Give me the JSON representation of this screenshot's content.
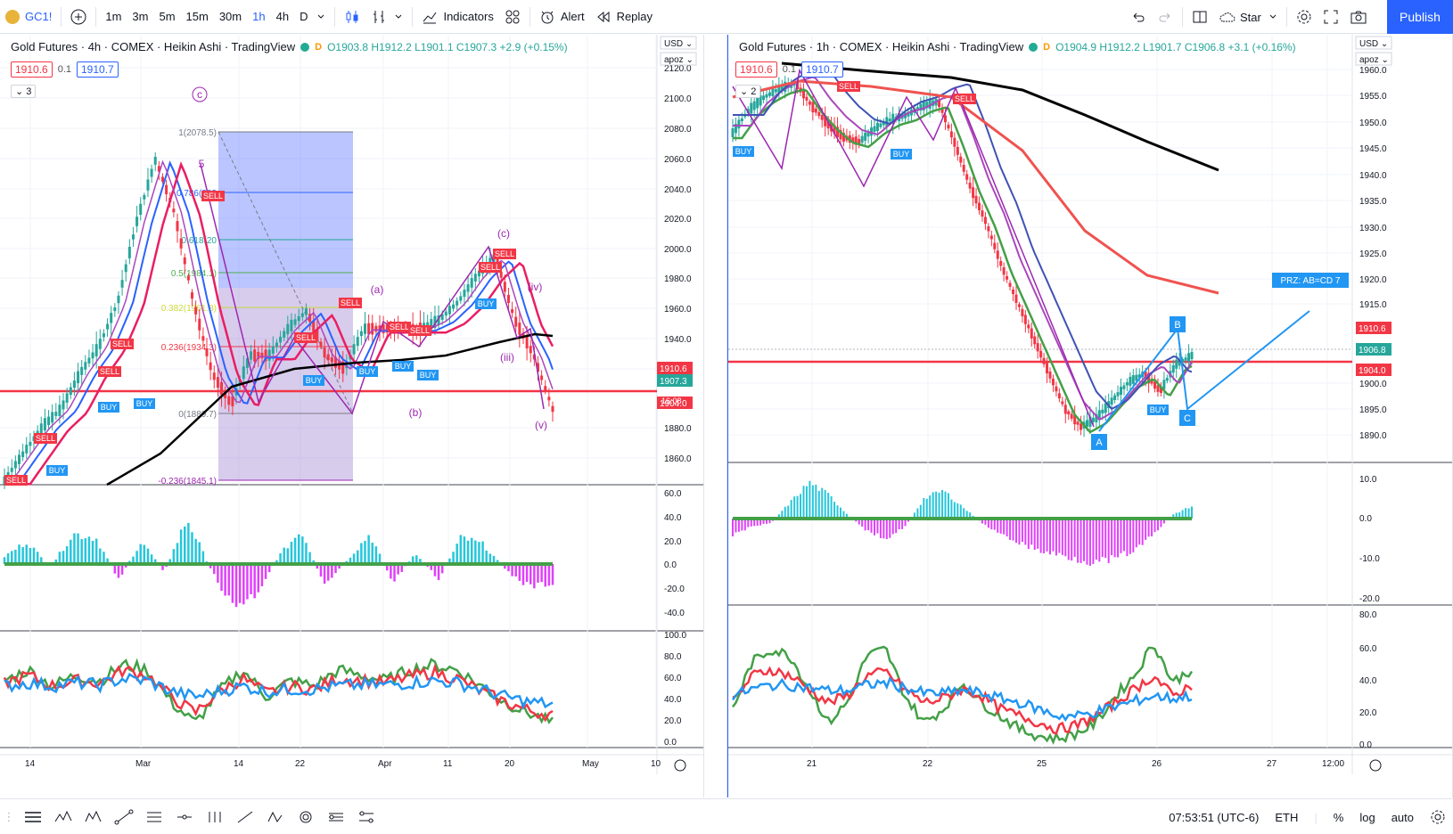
{
  "toolbar": {
    "symbol": "GC1!",
    "timeframes": [
      "1m",
      "3m",
      "5m",
      "15m",
      "30m",
      "1h",
      "4h",
      "D"
    ],
    "active_timeframe": "1h",
    "indicators_label": "Indicators",
    "alert_label": "Alert",
    "replay_label": "Replay",
    "layout_label": "Star",
    "publish_label": "Publish"
  },
  "left_chart": {
    "title": "Gold Futures · 4h · COMEX · Heikin Ashi · TradingView",
    "ohlc": "O1903.8 H1912.2 L1901.1 C1907.3 +2.9 (+0.15%)",
    "sell_price": "1910.6",
    "spread": "0.1",
    "buy_price": "1910.7",
    "collapse_count": "3",
    "currency": "USD",
    "scale_mode": "apoz",
    "price_ticks": [
      "2120.0",
      "2100.0",
      "2080.0",
      "2060.0",
      "2040.0",
      "2020.0",
      "2000.0",
      "1980.0",
      "1960.0",
      "1940.0",
      "1920.0",
      "1880.0",
      "1860.0"
    ],
    "tag_sell": "1910.6",
    "tag_last": "1907.3",
    "tag_last_time": "16:08",
    "tag_line": "1904.0",
    "osc_ticks": [
      "60.0",
      "40.0",
      "20.0",
      "0.0",
      "-20.0",
      "-40.0"
    ],
    "rsi_ticks": [
      "100.0",
      "80.0",
      "60.0",
      "40.0",
      "20.0",
      "0.0"
    ],
    "time_labels": [
      "14",
      "Mar",
      "14",
      "22",
      "Apr",
      "11",
      "20",
      "May",
      "10"
    ],
    "fib_levels": [
      "1(2078.5)",
      "0.786(203",
      "0.618(20",
      "0.5(1984.1)",
      "0.382(1961.8)",
      "0.236(1934.3)",
      "0(1889.7)",
      "-0.236(1845.1)"
    ],
    "wave_labels": [
      "c",
      "5",
      "(a)",
      "(b)",
      "(c)",
      "(iv)",
      "(iii)",
      "(v)"
    ],
    "signals": [
      "SELL",
      "BUY"
    ]
  },
  "right_chart": {
    "title": "Gold Futures · 1h · COMEX · Heikin Ashi · TradingView",
    "ohlc": "O1904.9 H1912.2 L1901.7 C1906.8 +3.1 (+0.16%)",
    "sell_price": "1910.6",
    "spread": "0.1",
    "buy_price": "1910.7",
    "collapse_count": "2",
    "currency": "USD",
    "scale_mode": "apoz",
    "price_ticks": [
      "1960.0",
      "1955.0",
      "1950.0",
      "1945.0",
      "1940.0",
      "1935.0",
      "1930.0",
      "1925.0",
      "1920.0",
      "1915.0",
      "1900.0",
      "1895.0",
      "1890.0"
    ],
    "tag_sell": "1910.6",
    "tag_last": "1906.8",
    "tag_last_time": "16:08",
    "tag_line": "1904.0",
    "osc_ticks": [
      "10.0",
      "0.0",
      "-10.0",
      "-20.0"
    ],
    "rsi_ticks": [
      "80.0",
      "60.0",
      "40.0",
      "20.0",
      "0.0"
    ],
    "time_labels": [
      "21",
      "22",
      "25",
      "26",
      "27",
      "12:00"
    ],
    "pattern_points": [
      "A",
      "B",
      "C"
    ],
    "prz_label": "PRZ: AB=CD 7",
    "signals": [
      "SELL",
      "BUY"
    ]
  },
  "bottom": {
    "clock": "07:53:51 (UTC-6)",
    "session": "ETH",
    "percent": "%",
    "log": "log",
    "auto": "auto"
  }
}
